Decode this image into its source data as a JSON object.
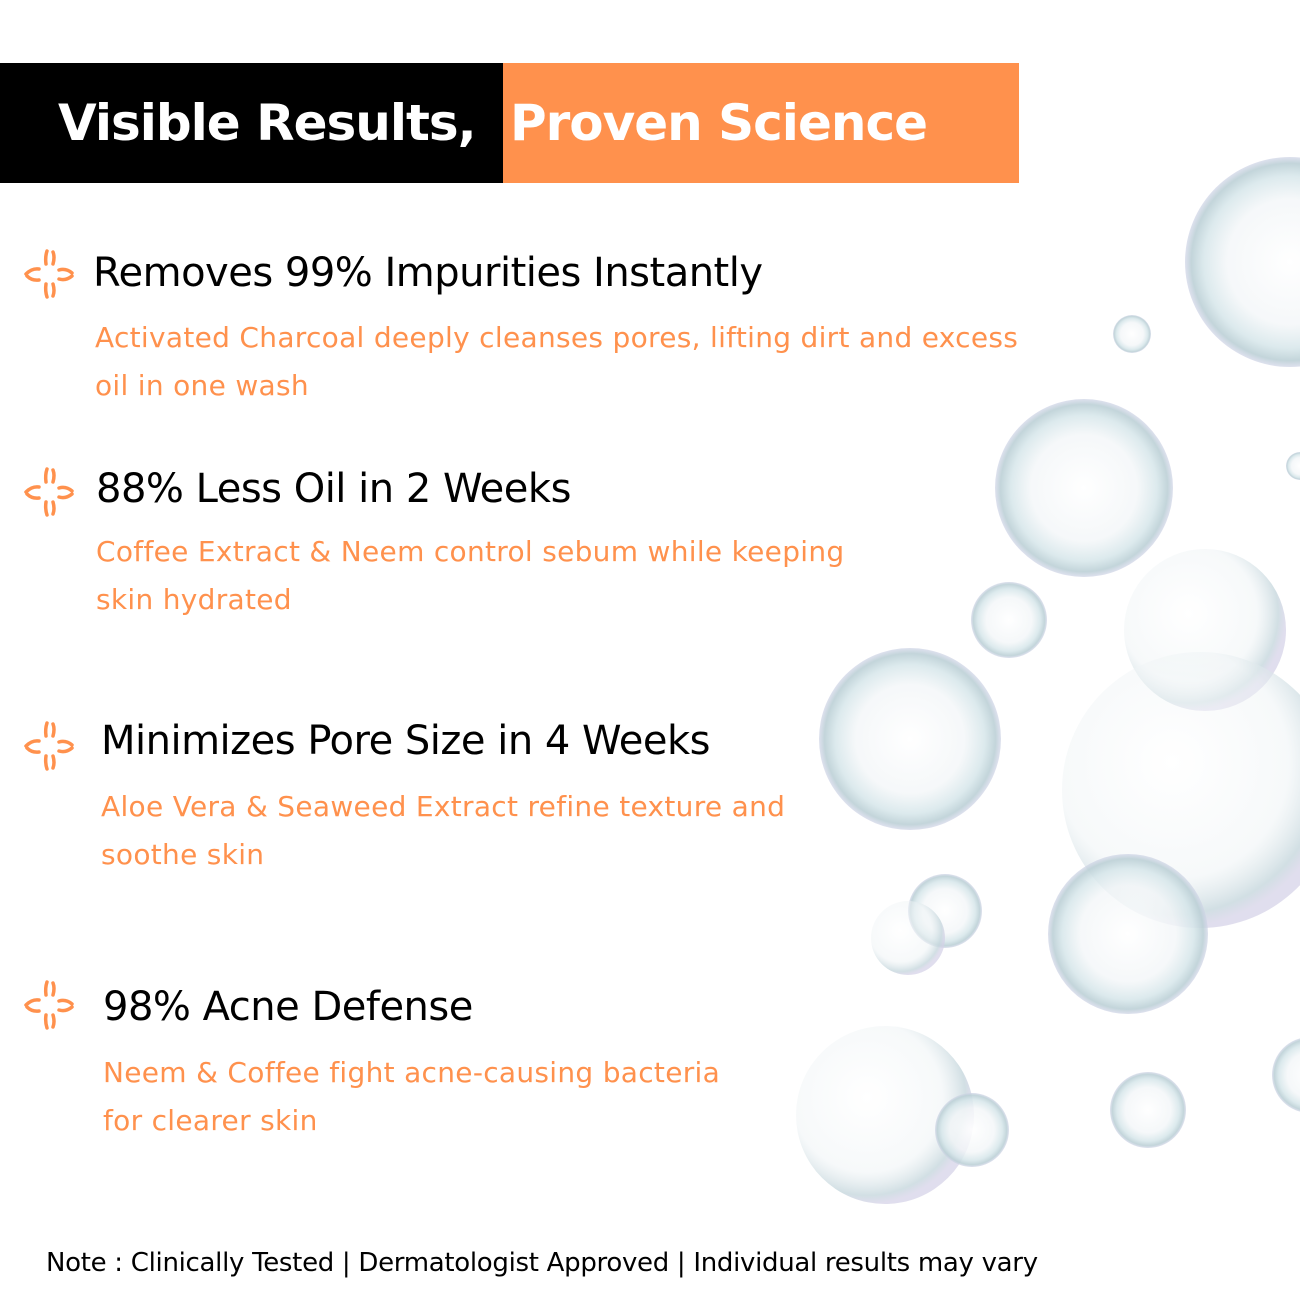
{
  "header": {
    "title_part1": "Visible Results,",
    "title_part2": "Proven Science",
    "colors": {
      "dark": "#000000",
      "accent": "#ff914d"
    }
  },
  "features": [
    {
      "title": "Removes 99% Impurities Instantly",
      "desc_line1": "Activated Charcoal deeply cleanses pores, lifting dirt and excess",
      "desc_line2": "oil in one wash",
      "icon": "sparkle-icon"
    },
    {
      "title": "88% Less Oil in 2 Weeks",
      "desc_line1": "Coffee Extract & Neem control sebum while keeping",
      "desc_line2": "skin hydrated",
      "icon": "sparkle-icon"
    },
    {
      "title": "Minimizes Pore Size in 4 Weeks",
      "desc_line1": "Aloe Vera & Seaweed Extract refine texture and",
      "desc_line2": "soothe skin",
      "icon": "sparkle-icon"
    },
    {
      "title": "98% Acne Defense",
      "desc_line1": "Neem & Coffee fight acne-causing bacteria",
      "desc_line2": "for clearer skin",
      "icon": "sparkle-icon"
    }
  ],
  "note": "Note :  Clinically Tested | Dermatologist Approved | Individual results may vary"
}
